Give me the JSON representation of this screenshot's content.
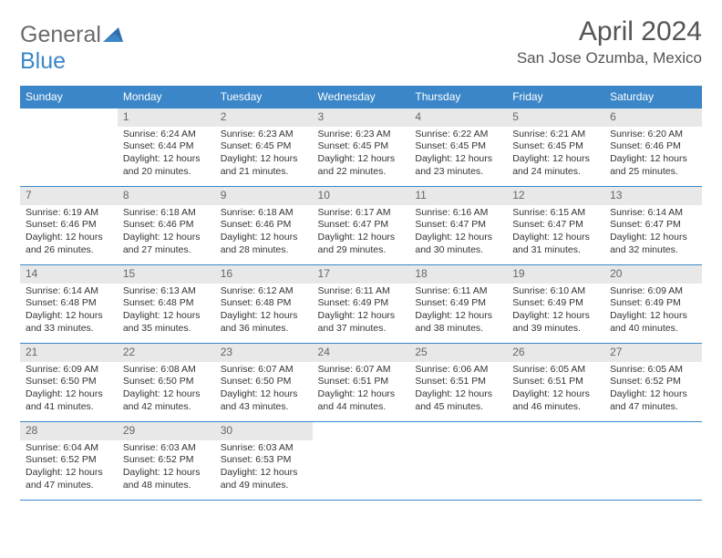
{
  "logo": {
    "general": "General",
    "blue": "Blue"
  },
  "title": "April 2024",
  "location": "San Jose Ozumba, Mexico",
  "colors": {
    "header_bg": "#3a86c8",
    "header_fg": "#ffffff",
    "daynum_bg": "#e8e8e8",
    "border": "#3a86c8",
    "text": "#333333",
    "muted": "#666666"
  },
  "weekdays": [
    "Sunday",
    "Monday",
    "Tuesday",
    "Wednesday",
    "Thursday",
    "Friday",
    "Saturday"
  ],
  "weeks": [
    [
      null,
      {
        "n": "1",
        "sr": "Sunrise: 6:24 AM",
        "ss": "Sunset: 6:44 PM",
        "d1": "Daylight: 12 hours",
        "d2": "and 20 minutes."
      },
      {
        "n": "2",
        "sr": "Sunrise: 6:23 AM",
        "ss": "Sunset: 6:45 PM",
        "d1": "Daylight: 12 hours",
        "d2": "and 21 minutes."
      },
      {
        "n": "3",
        "sr": "Sunrise: 6:23 AM",
        "ss": "Sunset: 6:45 PM",
        "d1": "Daylight: 12 hours",
        "d2": "and 22 minutes."
      },
      {
        "n": "4",
        "sr": "Sunrise: 6:22 AM",
        "ss": "Sunset: 6:45 PM",
        "d1": "Daylight: 12 hours",
        "d2": "and 23 minutes."
      },
      {
        "n": "5",
        "sr": "Sunrise: 6:21 AM",
        "ss": "Sunset: 6:45 PM",
        "d1": "Daylight: 12 hours",
        "d2": "and 24 minutes."
      },
      {
        "n": "6",
        "sr": "Sunrise: 6:20 AM",
        "ss": "Sunset: 6:46 PM",
        "d1": "Daylight: 12 hours",
        "d2": "and 25 minutes."
      }
    ],
    [
      {
        "n": "7",
        "sr": "Sunrise: 6:19 AM",
        "ss": "Sunset: 6:46 PM",
        "d1": "Daylight: 12 hours",
        "d2": "and 26 minutes."
      },
      {
        "n": "8",
        "sr": "Sunrise: 6:18 AM",
        "ss": "Sunset: 6:46 PM",
        "d1": "Daylight: 12 hours",
        "d2": "and 27 minutes."
      },
      {
        "n": "9",
        "sr": "Sunrise: 6:18 AM",
        "ss": "Sunset: 6:46 PM",
        "d1": "Daylight: 12 hours",
        "d2": "and 28 minutes."
      },
      {
        "n": "10",
        "sr": "Sunrise: 6:17 AM",
        "ss": "Sunset: 6:47 PM",
        "d1": "Daylight: 12 hours",
        "d2": "and 29 minutes."
      },
      {
        "n": "11",
        "sr": "Sunrise: 6:16 AM",
        "ss": "Sunset: 6:47 PM",
        "d1": "Daylight: 12 hours",
        "d2": "and 30 minutes."
      },
      {
        "n": "12",
        "sr": "Sunrise: 6:15 AM",
        "ss": "Sunset: 6:47 PM",
        "d1": "Daylight: 12 hours",
        "d2": "and 31 minutes."
      },
      {
        "n": "13",
        "sr": "Sunrise: 6:14 AM",
        "ss": "Sunset: 6:47 PM",
        "d1": "Daylight: 12 hours",
        "d2": "and 32 minutes."
      }
    ],
    [
      {
        "n": "14",
        "sr": "Sunrise: 6:14 AM",
        "ss": "Sunset: 6:48 PM",
        "d1": "Daylight: 12 hours",
        "d2": "and 33 minutes."
      },
      {
        "n": "15",
        "sr": "Sunrise: 6:13 AM",
        "ss": "Sunset: 6:48 PM",
        "d1": "Daylight: 12 hours",
        "d2": "and 35 minutes."
      },
      {
        "n": "16",
        "sr": "Sunrise: 6:12 AM",
        "ss": "Sunset: 6:48 PM",
        "d1": "Daylight: 12 hours",
        "d2": "and 36 minutes."
      },
      {
        "n": "17",
        "sr": "Sunrise: 6:11 AM",
        "ss": "Sunset: 6:49 PM",
        "d1": "Daylight: 12 hours",
        "d2": "and 37 minutes."
      },
      {
        "n": "18",
        "sr": "Sunrise: 6:11 AM",
        "ss": "Sunset: 6:49 PM",
        "d1": "Daylight: 12 hours",
        "d2": "and 38 minutes."
      },
      {
        "n": "19",
        "sr": "Sunrise: 6:10 AM",
        "ss": "Sunset: 6:49 PM",
        "d1": "Daylight: 12 hours",
        "d2": "and 39 minutes."
      },
      {
        "n": "20",
        "sr": "Sunrise: 6:09 AM",
        "ss": "Sunset: 6:49 PM",
        "d1": "Daylight: 12 hours",
        "d2": "and 40 minutes."
      }
    ],
    [
      {
        "n": "21",
        "sr": "Sunrise: 6:09 AM",
        "ss": "Sunset: 6:50 PM",
        "d1": "Daylight: 12 hours",
        "d2": "and 41 minutes."
      },
      {
        "n": "22",
        "sr": "Sunrise: 6:08 AM",
        "ss": "Sunset: 6:50 PM",
        "d1": "Daylight: 12 hours",
        "d2": "and 42 minutes."
      },
      {
        "n": "23",
        "sr": "Sunrise: 6:07 AM",
        "ss": "Sunset: 6:50 PM",
        "d1": "Daylight: 12 hours",
        "d2": "and 43 minutes."
      },
      {
        "n": "24",
        "sr": "Sunrise: 6:07 AM",
        "ss": "Sunset: 6:51 PM",
        "d1": "Daylight: 12 hours",
        "d2": "and 44 minutes."
      },
      {
        "n": "25",
        "sr": "Sunrise: 6:06 AM",
        "ss": "Sunset: 6:51 PM",
        "d1": "Daylight: 12 hours",
        "d2": "and 45 minutes."
      },
      {
        "n": "26",
        "sr": "Sunrise: 6:05 AM",
        "ss": "Sunset: 6:51 PM",
        "d1": "Daylight: 12 hours",
        "d2": "and 46 minutes."
      },
      {
        "n": "27",
        "sr": "Sunrise: 6:05 AM",
        "ss": "Sunset: 6:52 PM",
        "d1": "Daylight: 12 hours",
        "d2": "and 47 minutes."
      }
    ],
    [
      {
        "n": "28",
        "sr": "Sunrise: 6:04 AM",
        "ss": "Sunset: 6:52 PM",
        "d1": "Daylight: 12 hours",
        "d2": "and 47 minutes."
      },
      {
        "n": "29",
        "sr": "Sunrise: 6:03 AM",
        "ss": "Sunset: 6:52 PM",
        "d1": "Daylight: 12 hours",
        "d2": "and 48 minutes."
      },
      {
        "n": "30",
        "sr": "Sunrise: 6:03 AM",
        "ss": "Sunset: 6:53 PM",
        "d1": "Daylight: 12 hours",
        "d2": "and 49 minutes."
      },
      null,
      null,
      null,
      null
    ]
  ]
}
